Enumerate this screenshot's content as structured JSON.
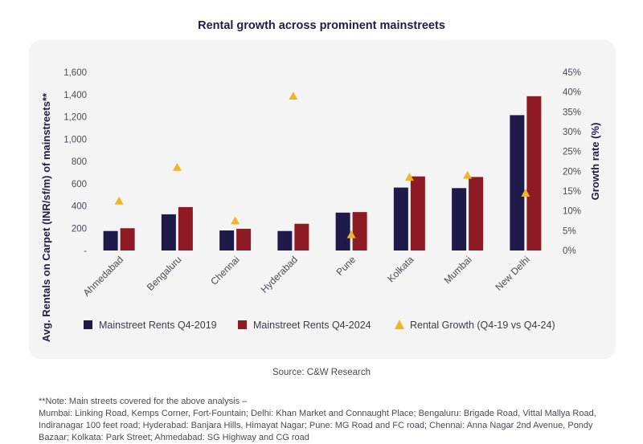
{
  "title": "Rental growth across prominent mainstreets",
  "source": "Source: C&W Research",
  "note": {
    "heading": "**Note: Main streets covered for the above analysis –",
    "text": "Mumbai: Linking Road, Kemps Corner, Fort-Fountain; Delhi: Khan Market and Connaught Place; Bengaluru: Brigade Road, Vittal Mallya Road, Indiranagar 100 feet road; Hyderabad: Banjara Hills, Himayat Nagar; Pune: MG Road and FC road; Chennai: Anna Nagar 2nd Avenue, Pondy Bazaar; Kolkata: Park Street; Ahmedabad: SG Highway and CG road"
  },
  "chart_data": {
    "type": "bar",
    "title": "Rental growth across prominent mainstreets",
    "categories": [
      "Ahmedabad",
      "Bengaluru",
      "Chennai",
      "Hyderabad",
      "Pune",
      "Kolkata",
      "Mumbai",
      "New Delhi"
    ],
    "ylabel": "Avg. Rentals on Carpet (INR/sf/m) of mainstreets**",
    "y2label": "Growth rate (%)",
    "ylim": [
      0,
      1600
    ],
    "y2lim": [
      0,
      45
    ],
    "yticks": [
      "-",
      "200",
      "400",
      "600",
      "800",
      "1,000",
      "1,200",
      "1,400",
      "1,600"
    ],
    "y2ticks": [
      "0%",
      "5%",
      "10%",
      "15%",
      "20%",
      "25%",
      "30%",
      "35%",
      "40%",
      "45%"
    ],
    "series": [
      {
        "name": "Mainstreet Rents Q4-2019",
        "kind": "bar",
        "color": "#1e1b4b",
        "values": [
          175,
          325,
          180,
          175,
          340,
          565,
          560,
          1215
        ]
      },
      {
        "name": "Mainstreet Rents Q4-2024",
        "kind": "bar",
        "color": "#8e1b24",
        "values": [
          200,
          390,
          195,
          240,
          345,
          665,
          660,
          1385
        ]
      },
      {
        "name": "Rental Growth (Q4-19 vs Q4-24)",
        "kind": "marker",
        "axis": "right",
        "color": "#f0b429",
        "values": [
          12.5,
          21,
          7.5,
          39,
          4,
          18.5,
          19,
          14.5
        ]
      }
    ],
    "legend_position": "bottom"
  }
}
